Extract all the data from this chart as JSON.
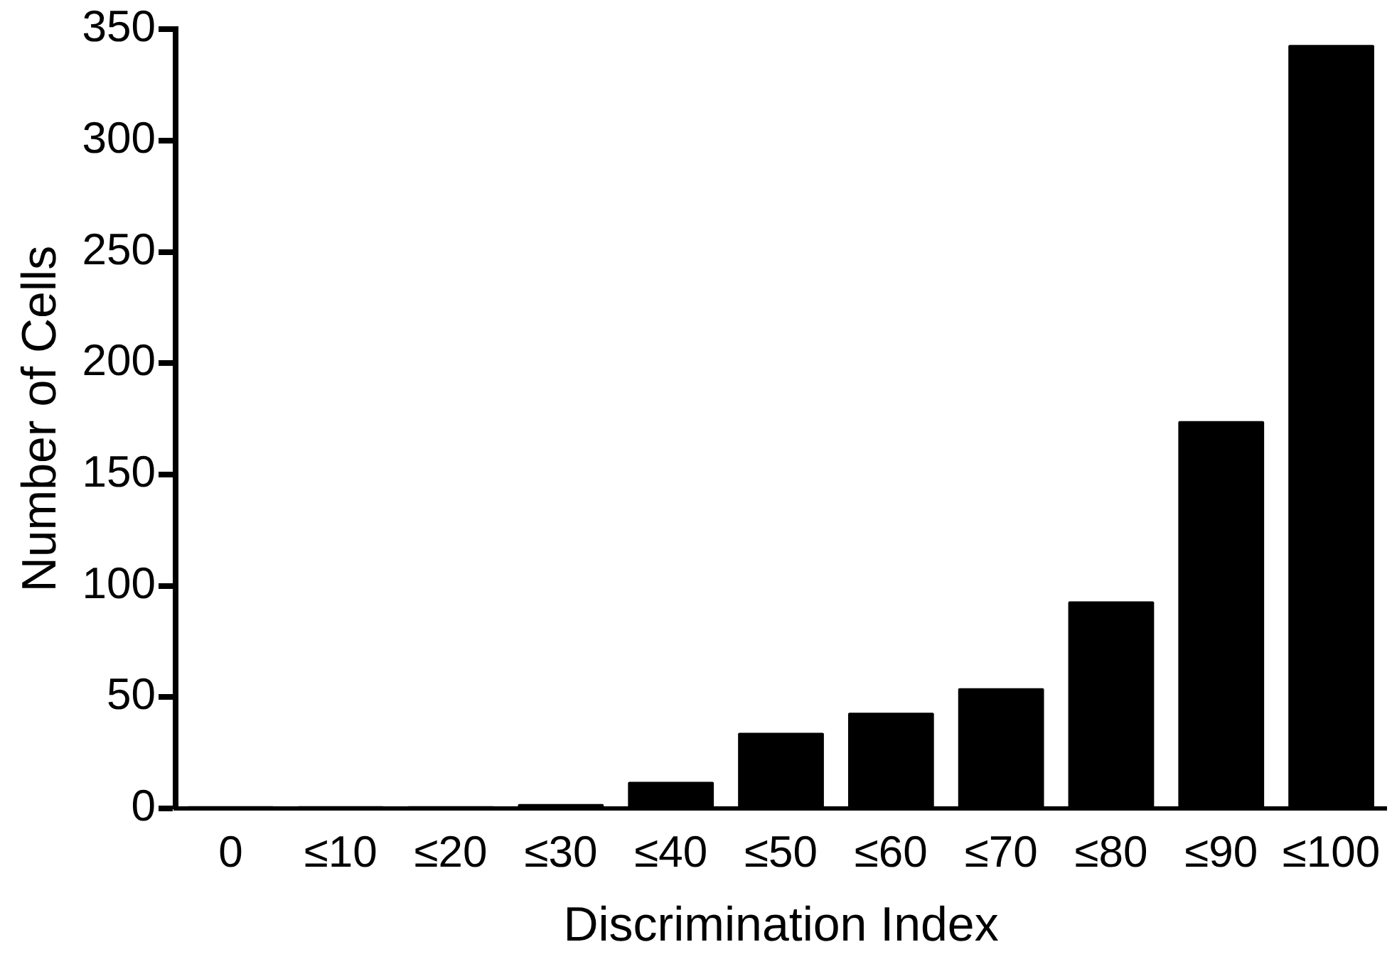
{
  "chart_data": {
    "type": "bar",
    "xlabel": "Discrimination Index",
    "ylabel": "Number of Cells",
    "categories": [
      "0",
      "≤10",
      "≤20",
      "≤30",
      "≤40",
      "≤50",
      "≤60",
      "≤70",
      "≤80",
      "≤90",
      "≤100"
    ],
    "values": [
      1,
      1,
      1,
      2,
      12,
      34,
      43,
      54,
      93,
      174,
      343
    ],
    "color": "#000000",
    "ylim": [
      0,
      350
    ],
    "yticks": [
      0,
      50,
      100,
      150,
      200,
      250,
      300,
      350
    ],
    "grid": false,
    "legend": false
  }
}
